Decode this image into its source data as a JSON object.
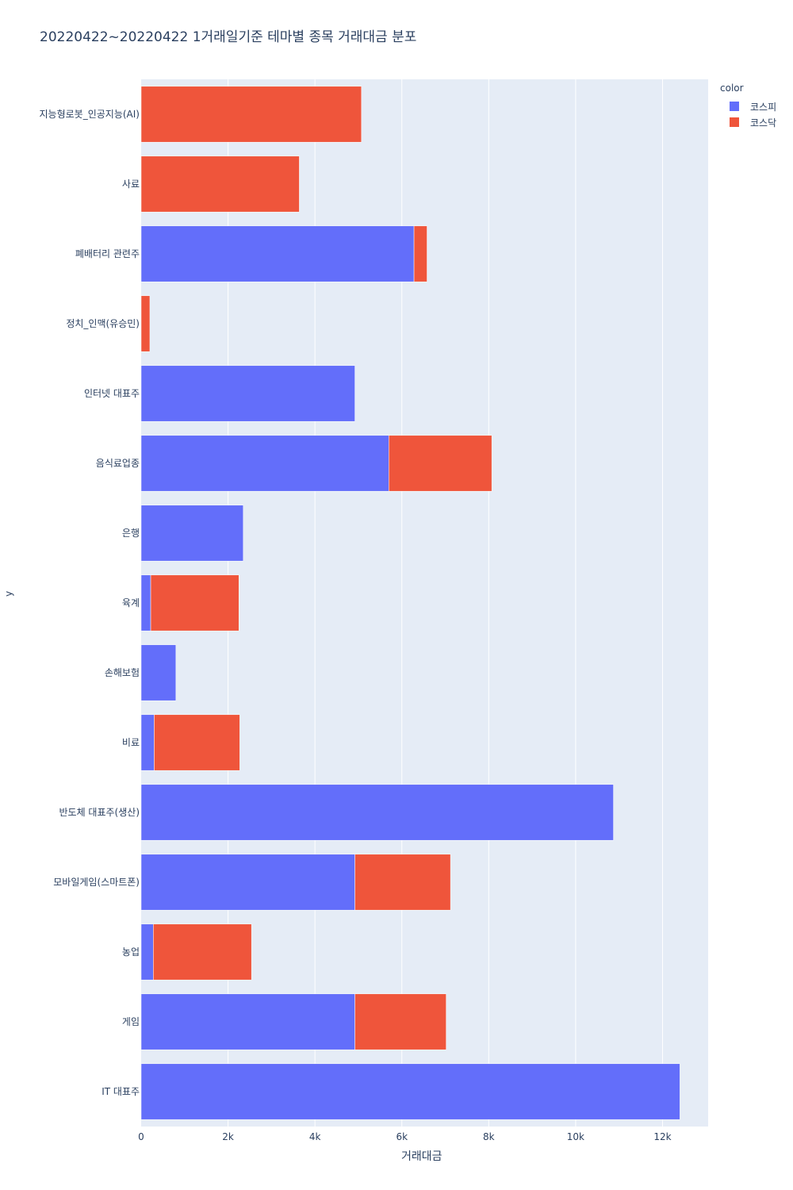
{
  "chart_data": {
    "type": "bar",
    "orientation": "horizontal",
    "barmode": "stack",
    "title": "20220422~20220422 1거래일기준 테마별 종목 거래대금 분포",
    "xlabel": "거래대금",
    "ylabel": "y",
    "xlim": [
      0,
      13050
    ],
    "xticks": [
      0,
      2000,
      4000,
      6000,
      8000,
      10000,
      12000
    ],
    "xtick_labels": [
      "0",
      "2k",
      "4k",
      "6k",
      "8k",
      "10k",
      "12k"
    ],
    "legend_title": "color",
    "categories": [
      "지능형로봇_인공지능(AI)",
      "사료",
      "폐배터리 관련주",
      "정치_인맥(유승민)",
      "인터넷 대표주",
      "음식료업종",
      "은행",
      "육계",
      "손해보험",
      "비료",
      "반도체 대표주(생산)",
      "모바일게임(스마트폰)",
      "농업",
      "게임",
      "IT 대표주"
    ],
    "series": [
      {
        "name": "코스피",
        "color": "#636efa",
        "values": [
          0,
          0,
          6280,
          0,
          4920,
          5700,
          2350,
          220,
          800,
          300,
          10870,
          4920,
          280,
          4920,
          12400
        ]
      },
      {
        "name": "코스닥",
        "color": "#ef553b",
        "values": [
          5070,
          3640,
          300,
          200,
          0,
          2370,
          0,
          2030,
          0,
          1970,
          0,
          2200,
          2260,
          2100,
          0
        ]
      }
    ]
  }
}
